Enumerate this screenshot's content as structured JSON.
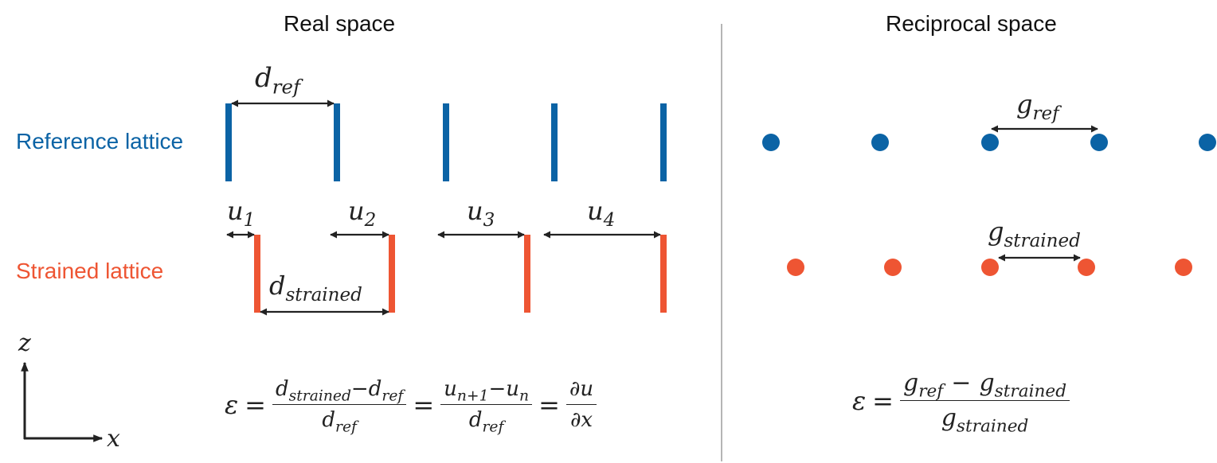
{
  "headers": {
    "real_space": "Real space",
    "reciprocal_space": "Reciprocal space"
  },
  "row_labels": {
    "reference": "Reference lattice",
    "strained": "Strained lattice"
  },
  "labels": {
    "d_ref": {
      "base": "d",
      "sub": "ref"
    },
    "d_strained": {
      "base": "d",
      "sub": "strained"
    },
    "u1": {
      "base": "u",
      "sub": "1"
    },
    "u2": {
      "base": "u",
      "sub": "2"
    },
    "u3": {
      "base": "u",
      "sub": "3"
    },
    "u4": {
      "base": "u",
      "sub": "4"
    },
    "g_ref": {
      "base": "g",
      "sub": "ref"
    },
    "g_strained": {
      "base": "g",
      "sub": "strained"
    },
    "axis_z": "z",
    "axis_x": "x"
  },
  "formula_real": {
    "lhs": "ε",
    "eq": "=",
    "f1_num_a": {
      "base": "d",
      "sub": "strained"
    },
    "f1_minus": "−",
    "f1_num_b": {
      "base": "d",
      "sub": "ref"
    },
    "f1_den": {
      "base": "d",
      "sub": "ref"
    },
    "f2_num_a": {
      "base": "u",
      "sub": "n+1"
    },
    "f2_minus": "−",
    "f2_num_b": {
      "base": "u",
      "sub": "n"
    },
    "f2_den": {
      "base": "d",
      "sub": "ref"
    },
    "f3_num": "∂u",
    "f3_den": "∂x"
  },
  "formula_reciprocal": {
    "lhs": "ε",
    "eq": "=",
    "num_a": {
      "base": "g",
      "sub": "ref"
    },
    "minus": "−",
    "num_b": {
      "base": "g",
      "sub": "strained"
    },
    "den": {
      "base": "g",
      "sub": "strained"
    }
  },
  "colors": {
    "reference": "#0b63a5",
    "strained": "#ee5533",
    "ink": "#222222",
    "divider": "#b5b5b5"
  }
}
